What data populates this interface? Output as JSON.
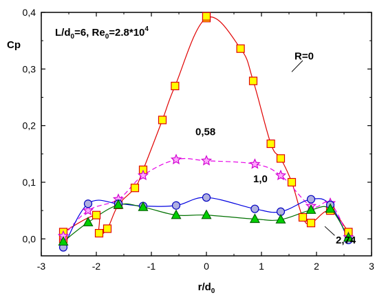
{
  "chart_data": {
    "type": "line",
    "annotation_header": {
      "L": "L/d",
      "L_sub": "0",
      "L_eq": "=6, Re",
      "Re_sub": "0",
      "Re_eq": "=2.8*10",
      "Re_sup": "4"
    },
    "xlabel": "r/d",
    "xlabel_sub": "0",
    "ylabel": "Cp",
    "xlim": [
      -3,
      3
    ],
    "ylim": [
      -0.03,
      0.4
    ],
    "xticks": [
      -3,
      -2,
      -1,
      0,
      1,
      2,
      3
    ],
    "xtick_labels": [
      "-3",
      "-2",
      "-1",
      "0",
      "1",
      "2",
      "3"
    ],
    "yticks": [
      0.0,
      0.1,
      0.2,
      0.3,
      0.4
    ],
    "ytick_labels": [
      "0,0",
      "0,1",
      "0,2",
      "0,3",
      "0,4"
    ],
    "series": [
      {
        "name": "R=0",
        "color": "#e00000",
        "marker": "square",
        "marker_fill": "#ffff00",
        "marker_stroke": "#e00000",
        "points": [
          [
            -2.6,
            0.012
          ],
          [
            -2.6,
            0.0
          ],
          [
            -2.0,
            0.042
          ],
          [
            -1.95,
            0.01
          ],
          [
            -1.8,
            0.018
          ],
          [
            -1.6,
            0.06
          ],
          [
            -1.3,
            0.09
          ],
          [
            -1.15,
            0.122
          ],
          [
            -0.8,
            0.21
          ],
          [
            -0.57,
            0.27
          ],
          [
            0.0,
            0.39
          ],
          [
            0.0,
            0.393
          ],
          [
            0.62,
            0.336
          ],
          [
            0.85,
            0.279
          ],
          [
            1.17,
            0.168
          ],
          [
            1.35,
            0.142
          ],
          [
            1.55,
            0.1
          ],
          [
            1.75,
            0.038
          ],
          [
            1.9,
            0.028
          ],
          [
            2.25,
            0.05
          ],
          [
            2.58,
            0.012
          ]
        ]
      },
      {
        "name": "0,58",
        "color": "#e600e6",
        "marker": "star",
        "marker_fill": "#ffa8ff",
        "marker_stroke": "#d000d0",
        "points": [
          [
            -2.6,
            0.005
          ],
          [
            -2.15,
            0.05
          ],
          [
            -1.6,
            0.07
          ],
          [
            -1.15,
            0.112
          ],
          [
            -0.55,
            0.14
          ],
          [
            0.0,
            0.138
          ],
          [
            0.88,
            0.132
          ],
          [
            1.35,
            0.112
          ],
          [
            1.9,
            0.058
          ],
          [
            2.25,
            0.063
          ],
          [
            2.58,
            0.003
          ]
        ]
      },
      {
        "name": "1,0",
        "color": "#0000e0",
        "marker": "circle",
        "marker_fill": "#b0b0e0",
        "marker_stroke": "#0000c0",
        "points": [
          [
            -2.6,
            -0.015
          ],
          [
            -2.15,
            0.062
          ],
          [
            -1.6,
            0.062
          ],
          [
            -1.15,
            0.058
          ],
          [
            -0.55,
            0.059
          ],
          [
            0.0,
            0.073
          ],
          [
            0.88,
            0.053
          ],
          [
            1.35,
            0.048
          ],
          [
            1.9,
            0.07
          ],
          [
            2.25,
            0.06
          ],
          [
            2.58,
            -0.002
          ]
        ]
      },
      {
        "name": "2,74",
        "color": "#007000",
        "marker": "triangle",
        "marker_fill": "#00d000",
        "marker_stroke": "#006000",
        "points": [
          [
            -2.6,
            -0.005
          ],
          [
            -2.15,
            0.029
          ],
          [
            -1.6,
            0.06
          ],
          [
            -1.15,
            0.056
          ],
          [
            -0.55,
            0.042
          ],
          [
            0.0,
            0.042
          ],
          [
            0.88,
            0.035
          ],
          [
            1.35,
            0.034
          ],
          [
            1.9,
            0.051
          ],
          [
            2.25,
            0.053
          ],
          [
            2.58,
            0.002
          ]
        ]
      }
    ],
    "series_labels": [
      {
        "text": "R=0",
        "x": 1.6,
        "y": 0.317
      },
      {
        "text": "0,58",
        "x": -0.2,
        "y": 0.183
      },
      {
        "text": "1,0",
        "x": 0.85,
        "y": 0.1
      },
      {
        "text": "2,74",
        "x": 2.35,
        "y": -0.008
      }
    ]
  }
}
